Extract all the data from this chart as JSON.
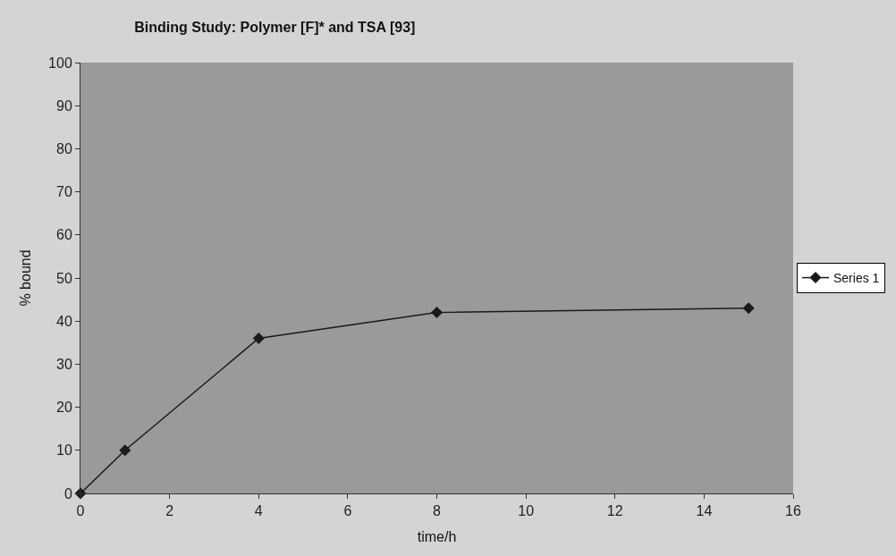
{
  "chart_data": {
    "type": "line",
    "title": "Binding Study: Polymer [F]* and TSA [93]",
    "xlabel": "time/h",
    "ylabel": "% bound",
    "x": [
      0,
      1,
      4,
      8,
      15
    ],
    "series": [
      {
        "name": "Series 1",
        "color": "#1a1a1a",
        "values": [
          0,
          10,
          36,
          42,
          43
        ]
      }
    ],
    "xlim": [
      0,
      16
    ],
    "xticks": [
      0,
      2,
      4,
      6,
      8,
      10,
      12,
      14,
      16
    ],
    "ylim": [
      0,
      100
    ],
    "yticks": [
      0,
      10,
      20,
      30,
      40,
      50,
      60,
      70,
      80,
      90,
      100
    ],
    "grid": false,
    "legend": "right",
    "marker": "diamond",
    "line_style": "solid"
  }
}
